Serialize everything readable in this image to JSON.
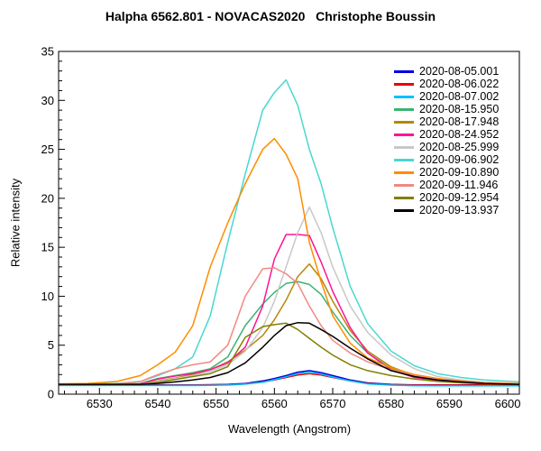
{
  "chart_data": {
    "type": "line",
    "title": "Halpha 6562.801 - NOVACAS2020   Christophe Boussin",
    "xlabel": "Wavelength (Angstrom)",
    "ylabel": "Relative intensity",
    "xlim": [
      6523,
      6602
    ],
    "ylim": [
      0,
      35
    ],
    "x_major_ticks": [
      6530,
      6540,
      6550,
      6560,
      6570,
      6580,
      6590,
      6600
    ],
    "x_minor_step": 2,
    "y_major_ticks": [
      0,
      5,
      10,
      15,
      20,
      25,
      30,
      35
    ],
    "y_minor_step": 1,
    "grid": false,
    "legend_position": "top-right",
    "axis_color": "#000000",
    "background_color": "#ffffff",
    "x": [
      6523,
      6528,
      6533,
      6537,
      6540,
      6543,
      6546,
      6549,
      6552,
      6555,
      6558,
      6560,
      6562,
      6564,
      6566,
      6568,
      6570,
      6573,
      6576,
      6580,
      6584,
      6588,
      6592,
      6596,
      6602
    ],
    "series": [
      {
        "name": "2020-08-05.001",
        "color": "#0000e0",
        "values": [
          0.95,
          0.95,
          0.95,
          0.95,
          0.95,
          0.95,
          0.95,
          0.97,
          1.0,
          1.1,
          1.35,
          1.6,
          1.9,
          2.25,
          2.4,
          2.2,
          1.9,
          1.45,
          1.15,
          1.0,
          0.95,
          0.95,
          0.95,
          0.95,
          0.95
        ]
      },
      {
        "name": "2020-08-06.022",
        "color": "#ee0000",
        "values": [
          0.92,
          0.92,
          0.92,
          0.92,
          0.92,
          0.92,
          0.92,
          0.94,
          0.97,
          1.05,
          1.25,
          1.45,
          1.7,
          1.95,
          2.1,
          1.95,
          1.7,
          1.35,
          1.1,
          0.97,
          0.92,
          0.92,
          0.92,
          0.92,
          0.92
        ]
      },
      {
        "name": "2020-08-07.002",
        "color": "#00bfff",
        "values": [
          0.88,
          0.88,
          0.88,
          0.88,
          0.88,
          0.88,
          0.88,
          0.9,
          0.93,
          1.02,
          1.22,
          1.48,
          1.78,
          2.1,
          2.28,
          2.05,
          1.75,
          1.35,
          1.05,
          0.92,
          0.87,
          0.86,
          0.86,
          0.86,
          0.86
        ]
      },
      {
        "name": "2020-08-15.950",
        "color": "#3cb371",
        "values": [
          1.0,
          1.0,
          1.0,
          1.1,
          1.6,
          1.9,
          2.2,
          2.6,
          3.8,
          7.0,
          9.2,
          10.4,
          11.3,
          11.5,
          11.2,
          10.2,
          8.4,
          6.0,
          4.2,
          2.6,
          1.9,
          1.5,
          1.25,
          1.1,
          1.0
        ]
      },
      {
        "name": "2020-08-17.948",
        "color": "#b8860b",
        "values": [
          1.0,
          1.0,
          1.0,
          1.05,
          1.35,
          1.65,
          2.0,
          2.5,
          3.3,
          4.5,
          6.0,
          7.6,
          9.6,
          12.0,
          13.3,
          11.8,
          9.5,
          6.5,
          4.4,
          2.8,
          1.9,
          1.5,
          1.3,
          1.15,
          1.05
        ]
      },
      {
        "name": "2020-08-24.952",
        "color": "#ff1493",
        "values": [
          1.0,
          1.0,
          1.0,
          1.05,
          1.55,
          1.85,
          2.1,
          2.5,
          3.2,
          4.8,
          9.0,
          13.8,
          16.3,
          16.3,
          16.2,
          13.5,
          10.5,
          6.8,
          4.2,
          2.5,
          1.7,
          1.4,
          1.2,
          1.1,
          1.0
        ]
      },
      {
        "name": "2020-08-25.999",
        "color": "#c8c8c8",
        "values": [
          1.0,
          1.0,
          1.0,
          1.0,
          1.3,
          1.6,
          1.9,
          2.3,
          3.0,
          4.4,
          6.8,
          9.5,
          13.0,
          16.5,
          19.1,
          16.5,
          13.0,
          9.0,
          6.3,
          4.0,
          2.6,
          1.8,
          1.45,
          1.2,
          1.05
        ]
      },
      {
        "name": "2020-09-06.902",
        "color": "#48d8d0",
        "values": [
          1.05,
          1.05,
          1.1,
          1.3,
          1.9,
          2.6,
          3.8,
          8.0,
          15.5,
          22.5,
          29.0,
          30.8,
          32.1,
          29.5,
          25.0,
          21.5,
          17.0,
          11.0,
          7.2,
          4.4,
          2.9,
          2.1,
          1.7,
          1.45,
          1.25
        ]
      },
      {
        "name": "2020-09-10.890",
        "color": "#ff8c00",
        "values": [
          1.05,
          1.1,
          1.3,
          1.9,
          3.0,
          4.3,
          7.0,
          13.0,
          17.5,
          21.5,
          25.0,
          26.1,
          24.5,
          22.0,
          15.5,
          11.5,
          8.0,
          5.2,
          3.7,
          2.7,
          2.0,
          1.6,
          1.35,
          1.2,
          1.1
        ]
      },
      {
        "name": "2020-09-11.946",
        "color": "#f08982",
        "values": [
          1.0,
          1.0,
          1.05,
          1.3,
          2.0,
          2.6,
          3.0,
          3.3,
          5.0,
          10.0,
          12.8,
          12.9,
          12.3,
          11.3,
          9.0,
          7.0,
          5.5,
          4.2,
          3.3,
          2.5,
          1.9,
          1.5,
          1.3,
          1.15,
          1.05
        ]
      },
      {
        "name": "2020-09-12.954",
        "color": "#808000",
        "values": [
          1.0,
          1.0,
          1.0,
          1.0,
          1.2,
          1.5,
          1.8,
          2.1,
          2.8,
          5.8,
          6.9,
          7.1,
          7.25,
          6.6,
          5.7,
          4.8,
          4.0,
          3.0,
          2.4,
          1.9,
          1.55,
          1.3,
          1.15,
          1.05,
          1.0
        ]
      },
      {
        "name": "2020-09-13.937",
        "color": "#000000",
        "values": [
          1.0,
          1.0,
          1.0,
          1.0,
          1.1,
          1.25,
          1.45,
          1.7,
          2.2,
          3.2,
          4.8,
          6.0,
          7.0,
          7.3,
          7.25,
          6.6,
          5.9,
          4.7,
          3.6,
          2.4,
          1.8,
          1.45,
          1.25,
          1.1,
          1.0
        ]
      }
    ]
  }
}
